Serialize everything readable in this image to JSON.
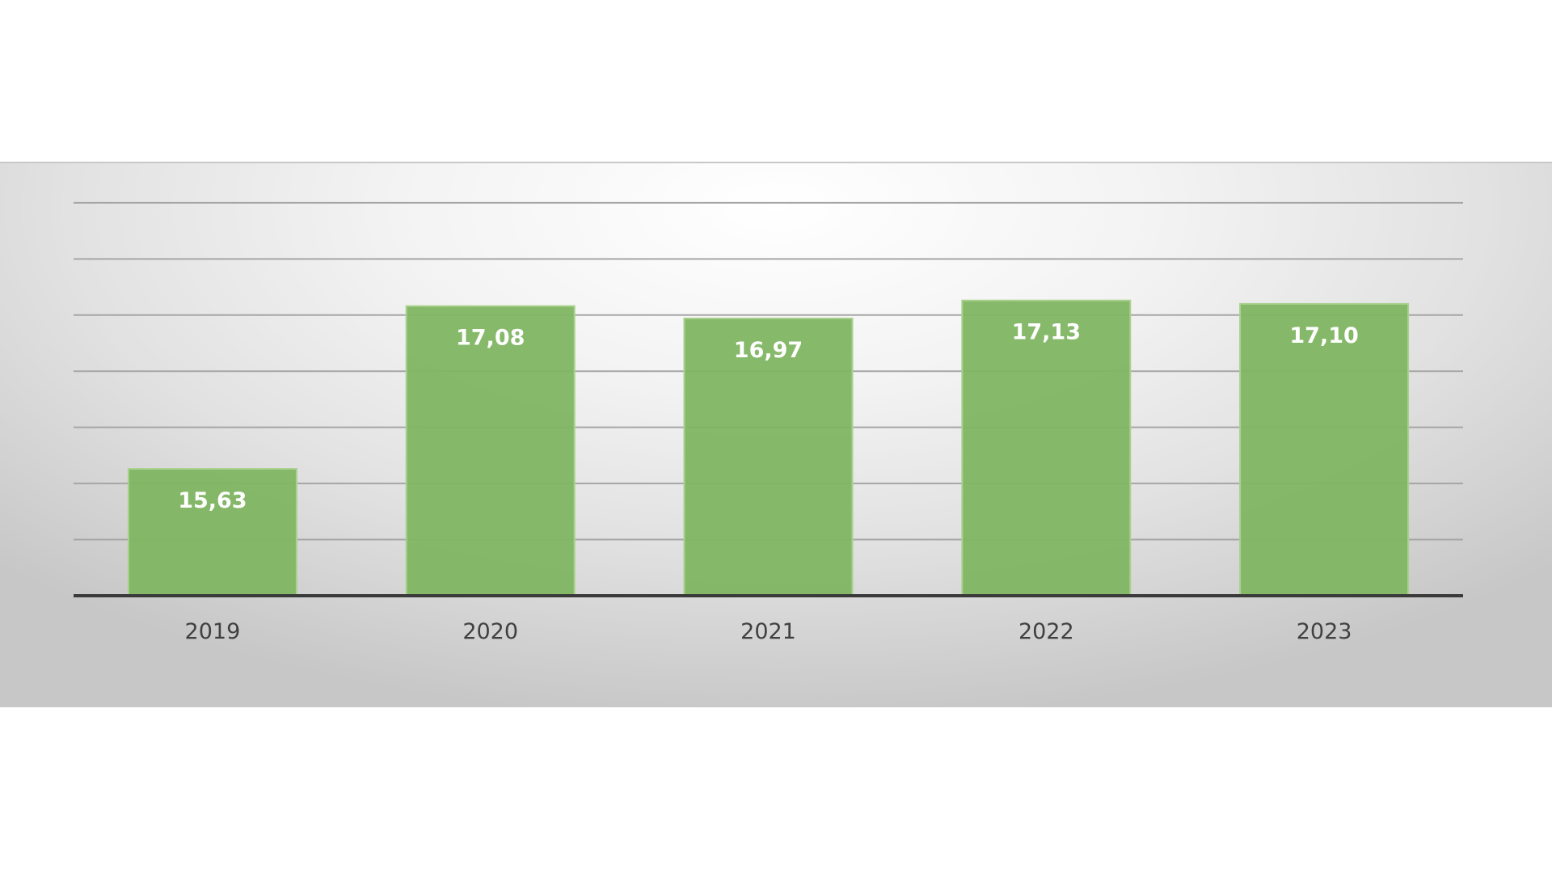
{
  "chart_data": {
    "type": "bar",
    "categories": [
      "2019",
      "2020",
      "2021",
      "2022",
      "2023"
    ],
    "values": [
      15.63,
      17.08,
      16.97,
      17.13,
      17.1
    ],
    "data_labels": [
      "15,63",
      "17,08",
      "16,97",
      "17,13",
      "17,10"
    ],
    "title": "",
    "xlabel": "",
    "ylabel": "",
    "ylim": [
      14.5,
      18.1
    ],
    "y_gridline_step": 0.5,
    "grid": true,
    "legend": "none",
    "bar_color": "#7fb562",
    "bar_edge_color": "#a9d18e",
    "gridline_color": "#a6a6a6",
    "axis_color": "#3a3a3a",
    "label_color": "#ffffff",
    "category_label_color": "#404040"
  }
}
